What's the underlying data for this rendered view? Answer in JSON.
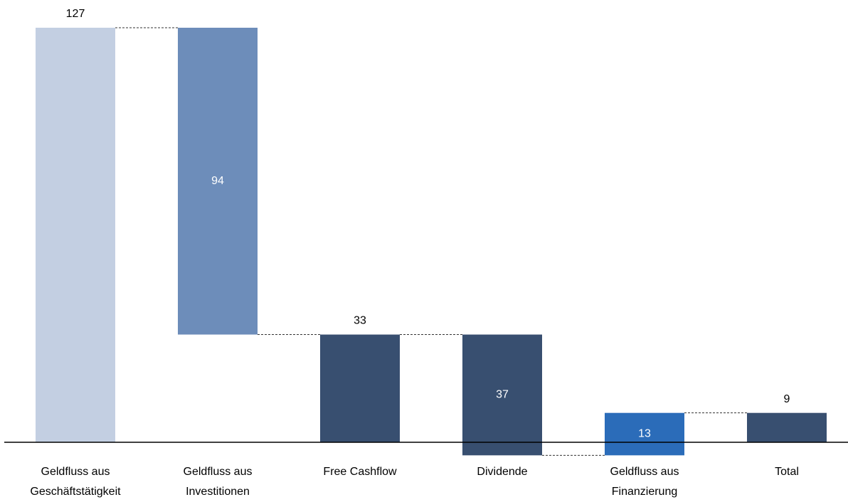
{
  "chart_data": {
    "type": "waterfall",
    "categories": [
      [
        "Geldfluss aus",
        "Geschäftstätigkeit"
      ],
      [
        "Geldfluss aus",
        "Investitionen"
      ],
      [
        "Free Cashflow"
      ],
      [
        "Dividende"
      ],
      [
        "Geldfluss aus",
        "Finanzierung"
      ],
      [
        "Total"
      ]
    ],
    "values": [
      127,
      -94,
      33,
      -37,
      13,
      9
    ],
    "value_labels": [
      "127",
      "94",
      "33",
      "37",
      "13",
      "9"
    ],
    "totals": [
      true,
      false,
      true,
      false,
      false,
      true
    ],
    "colors": [
      "#c3cfe2",
      "#6d8dba",
      "#384f70",
      "#384f70",
      "#2b6cb9",
      "#384f70"
    ]
  }
}
